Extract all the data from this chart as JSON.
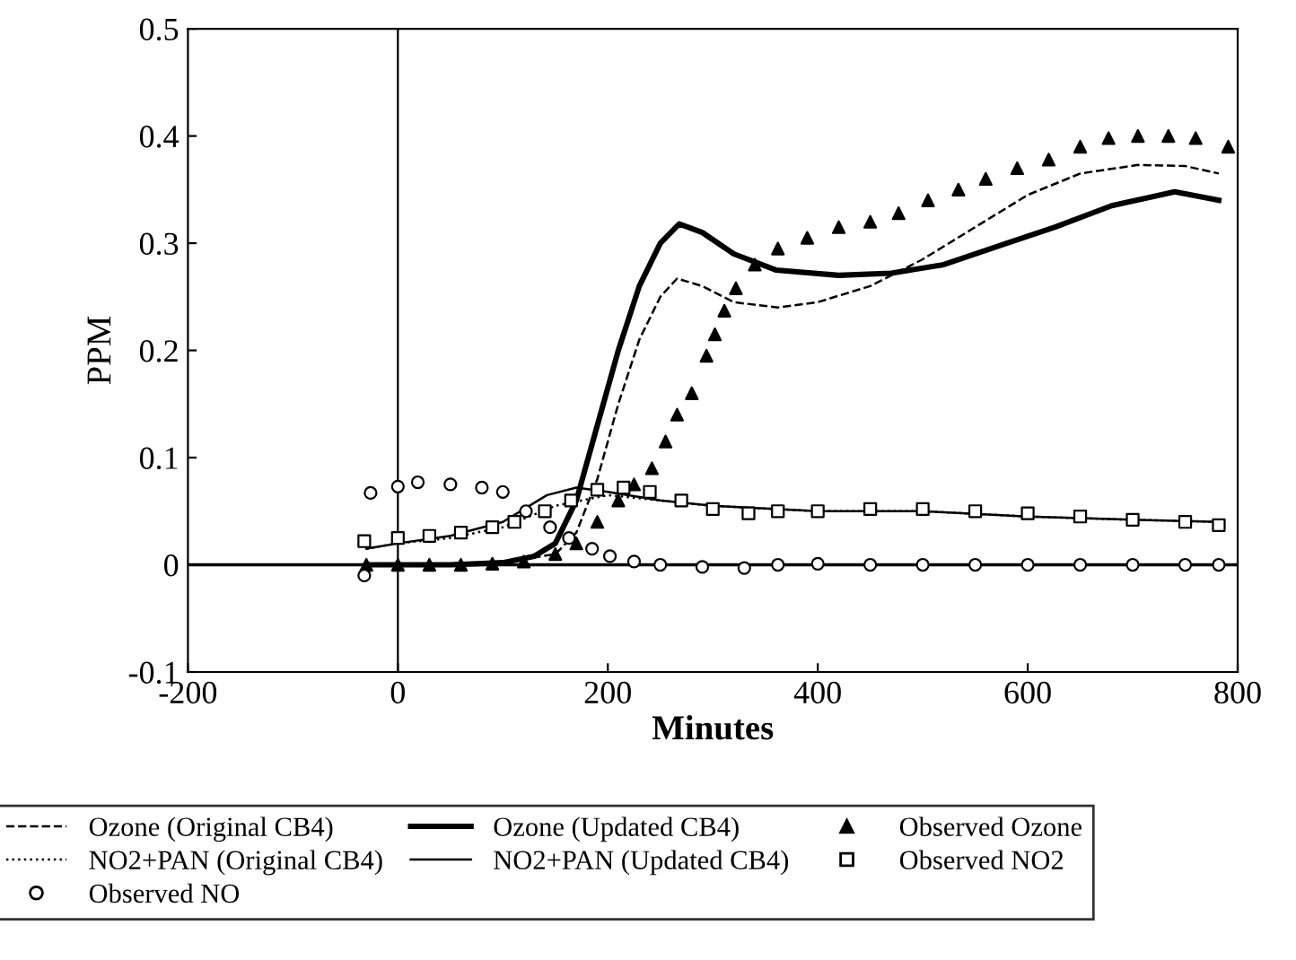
{
  "chart_data": {
    "type": "line",
    "xlabel": "Minutes",
    "ylabel": "PPM",
    "xlim": [
      -200,
      800
    ],
    "ylim": [
      -0.1,
      0.5
    ],
    "xticks": [
      -200,
      0,
      200,
      400,
      600,
      800
    ],
    "yticks": [
      -0.1,
      0,
      0.1,
      0.2,
      0.3,
      0.4,
      0.5
    ],
    "grid": false,
    "legend": "bottom",
    "ref_lines": [
      {
        "axis": "x",
        "value": 0,
        "color": "#000000"
      },
      {
        "axis": "y",
        "value": 0,
        "color": "#000000"
      }
    ],
    "series": [
      {
        "name": "Ozone (Original CB4)",
        "line_style": "dashed",
        "marker": "none",
        "color": "#000000",
        "x": [
          -30,
          0,
          50,
          100,
          150,
          170,
          190,
          210,
          230,
          250,
          266,
          290,
          320,
          362,
          400,
          450,
          500,
          550,
          600,
          650,
          705,
          750,
          782
        ],
        "values": [
          0,
          0,
          0,
          0.002,
          0.01,
          0.03,
          0.08,
          0.15,
          0.21,
          0.25,
          0.267,
          0.26,
          0.245,
          0.24,
          0.245,
          0.26,
          0.285,
          0.315,
          0.345,
          0.365,
          0.373,
          0.372,
          0.365
        ]
      },
      {
        "name": "Ozone (Updated CB4)",
        "line_style": "solid",
        "marker": "none",
        "color": "#000000",
        "x": [
          -30,
          0,
          50,
          100,
          130,
          150,
          170,
          190,
          210,
          230,
          250,
          268,
          290,
          320,
          360,
          420,
          470,
          520,
          580,
          626,
          680,
          740,
          782
        ],
        "values": [
          0,
          0,
          0,
          0.002,
          0.008,
          0.02,
          0.06,
          0.13,
          0.2,
          0.26,
          0.3,
          0.318,
          0.31,
          0.29,
          0.275,
          0.27,
          0.272,
          0.28,
          0.3,
          0.315,
          0.335,
          0.348,
          0.34
        ]
      },
      {
        "name": "NO2+PAN (Original CB4)",
        "line_style": "dotted",
        "marker": "none",
        "color": "#000000",
        "x": [
          -30,
          0,
          50,
          100,
          150,
          200,
          250,
          300,
          400,
          500,
          600,
          700,
          782
        ],
        "values": [
          0.015,
          0.02,
          0.025,
          0.035,
          0.055,
          0.065,
          0.06,
          0.055,
          0.05,
          0.05,
          0.045,
          0.042,
          0.04
        ]
      },
      {
        "name": "NO2+PAN (Updated CB4)",
        "line_style": "solid",
        "marker": "none",
        "color": "#000000",
        "x": [
          -30,
          0,
          50,
          100,
          142,
          170,
          200,
          250,
          300,
          400,
          500,
          600,
          700,
          782
        ],
        "values": [
          0.015,
          0.02,
          0.027,
          0.04,
          0.065,
          0.072,
          0.068,
          0.06,
          0.055,
          0.05,
          0.05,
          0.045,
          0.042,
          0.04
        ]
      },
      {
        "name": "Observed Ozone",
        "type": "scatter",
        "marker": "triangle",
        "color": "#000000",
        "x": [
          -30,
          0,
          30,
          60,
          90,
          120,
          150,
          170,
          190,
          210,
          225,
          242,
          255,
          266,
          280,
          294,
          302,
          311,
          322,
          340,
          362,
          390,
          420,
          450,
          477,
          505,
          534,
          560,
          590,
          620,
          650,
          677,
          705,
          734,
          760,
          791
        ],
        "values": [
          0,
          0,
          0,
          0,
          0.001,
          0.003,
          0.01,
          0.02,
          0.04,
          0.06,
          0.075,
          0.09,
          0.115,
          0.14,
          0.16,
          0.195,
          0.215,
          0.237,
          0.258,
          0.28,
          0.295,
          0.305,
          0.315,
          0.32,
          0.328,
          0.34,
          0.35,
          0.36,
          0.37,
          0.378,
          0.39,
          0.398,
          0.4,
          0.4,
          0.398,
          0.39
        ]
      },
      {
        "name": "Observed NO2",
        "type": "scatter",
        "marker": "square",
        "color": "#000000",
        "x": [
          -32,
          0,
          30,
          60,
          90,
          111,
          140,
          165,
          190,
          215,
          240,
          270,
          300,
          334,
          362,
          400,
          450,
          500,
          550,
          600,
          650,
          700,
          750,
          782
        ],
        "values": [
          0.022,
          0.025,
          0.027,
          0.03,
          0.035,
          0.04,
          0.05,
          0.06,
          0.07,
          0.072,
          0.068,
          0.06,
          0.052,
          0.048,
          0.05,
          0.05,
          0.052,
          0.052,
          0.05,
          0.048,
          0.045,
          0.042,
          0.04,
          0.037
        ]
      },
      {
        "name": "Observed NO",
        "type": "scatter",
        "marker": "circle",
        "color": "#000000",
        "x": [
          -32,
          -26,
          0,
          19,
          50,
          80,
          100,
          122,
          145,
          163,
          185,
          202,
          225,
          250,
          290,
          330,
          362,
          400,
          450,
          500,
          550,
          600,
          650,
          700,
          750,
          782
        ],
        "values": [
          -0.01,
          0.067,
          0.073,
          0.077,
          0.075,
          0.072,
          0.068,
          0.05,
          0.035,
          0.025,
          0.015,
          0.008,
          0.003,
          0,
          -0.002,
          -0.003,
          0,
          0.001,
          0,
          0,
          0,
          0,
          0,
          0,
          0,
          0
        ]
      }
    ]
  }
}
